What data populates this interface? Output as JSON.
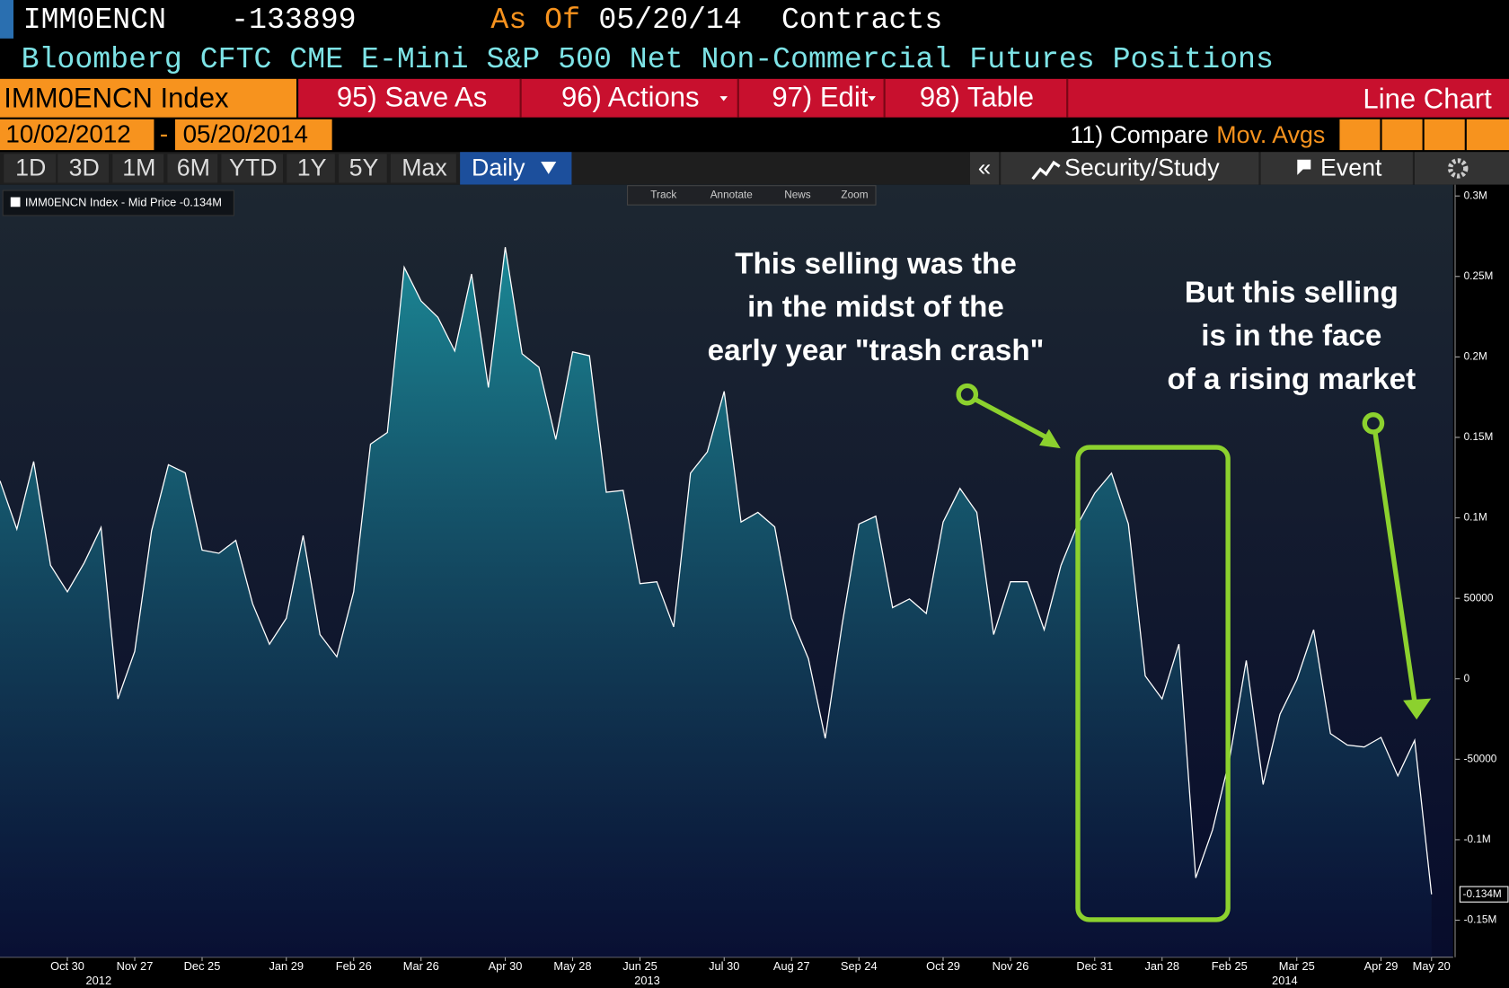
{
  "header": {
    "ticker": "IMM0ENCN",
    "as_of_label": "As Of",
    "as_of_date": "05/20/14",
    "units": "Contracts",
    "title": "Bloomberg CFTC CME E-Mini S&P 500 Net Non-Commercial Futures Positions"
  },
  "toolbar": {
    "security": "IMM0ENCN Index",
    "buttons": [
      "95) Save As",
      "96) Actions",
      "97) Edit",
      "98) Table"
    ],
    "view": "Line Chart"
  },
  "range": {
    "start": "10/02/2012",
    "separator": "-",
    "end": "05/20/2014",
    "compare": "11) Compare",
    "mov_avgs": "Mov. Avgs"
  },
  "periods": [
    "1D",
    "3D",
    "1M",
    "6M",
    "YTD",
    "1Y",
    "5Y",
    "Max"
  ],
  "frequency": "Daily",
  "side_tools": {
    "collapse": "«",
    "security_study": "Security/Study",
    "event": "Event"
  },
  "chart_tools": [
    "Track",
    "Annotate",
    "News",
    "Zoom"
  ],
  "chart_data": {
    "type": "area",
    "x": [
      "2012-10-02",
      "2012-10-09",
      "2012-10-16",
      "2012-10-23",
      "2012-10-30",
      "2012-11-06",
      "2012-11-13",
      "2012-11-20",
      "2012-11-27",
      "2012-12-04",
      "2012-12-11",
      "2012-12-18",
      "2012-12-25",
      "2013-01-01",
      "2013-01-08",
      "2013-01-15",
      "2013-01-22",
      "2013-01-29",
      "2013-02-05",
      "2013-02-12",
      "2013-02-19",
      "2013-02-26",
      "2013-03-05",
      "2013-03-12",
      "2013-03-19",
      "2013-03-26",
      "2013-04-02",
      "2013-04-09",
      "2013-04-16",
      "2013-04-23",
      "2013-04-30",
      "2013-05-07",
      "2013-05-14",
      "2013-05-21",
      "2013-05-28",
      "2013-06-04",
      "2013-06-11",
      "2013-06-18",
      "2013-06-25",
      "2013-07-02",
      "2013-07-09",
      "2013-07-16",
      "2013-07-23",
      "2013-07-30",
      "2013-08-06",
      "2013-08-13",
      "2013-08-20",
      "2013-08-27",
      "2013-09-03",
      "2013-09-10",
      "2013-09-17",
      "2013-09-24",
      "2013-10-01",
      "2013-10-08",
      "2013-10-15",
      "2013-10-22",
      "2013-10-29",
      "2013-11-05",
      "2013-11-12",
      "2013-11-19",
      "2013-11-26",
      "2013-12-03",
      "2013-12-10",
      "2013-12-17",
      "2013-12-24",
      "2013-12-31",
      "2014-01-07",
      "2014-01-14",
      "2014-01-21",
      "2014-01-28",
      "2014-02-04",
      "2014-02-11",
      "2014-02-18",
      "2014-02-25",
      "2014-03-04",
      "2014-03-11",
      "2014-03-18",
      "2014-03-25",
      "2014-04-01",
      "2014-04-08",
      "2014-04-15",
      "2014-04-22",
      "2014-04-29",
      "2014-05-06",
      "2014-05-13",
      "2014-05-20"
    ],
    "series": [
      {
        "name": "IMM0ENCN Index - Mid Price -0.134M",
        "color": "#ffffff",
        "fill": "#1b8896",
        "values": [
          123000,
          93000,
          135000,
          70500,
          54000,
          72000,
          94000,
          -12500,
          17000,
          92000,
          133000,
          128000,
          80000,
          78000,
          86000,
          46600,
          21500,
          37600,
          89000,
          27500,
          13700,
          54000,
          145800,
          153000,
          255700,
          234800,
          224600,
          203700,
          251500,
          181000,
          268200,
          202000,
          193600,
          148700,
          203100,
          200700,
          115900,
          117100,
          59100,
          60300,
          32300,
          127800,
          141000,
          178600,
          97400,
          103400,
          94400,
          37600,
          12500,
          -37000,
          33500,
          96200,
          101000,
          44200,
          49600,
          40600,
          97400,
          118300,
          103400,
          27500,
          60300,
          60300,
          30500,
          70500,
          96200,
          115300,
          127800,
          96200,
          1800,
          -12500,
          21500,
          -123700,
          -93800,
          -50200,
          11400,
          -65700,
          -22100,
          -600,
          30500,
          -34100,
          -41200,
          -42400,
          -36400,
          -60300,
          -38200,
          -133899
        ],
        "value_labels": [
          null,
          null,
          null,
          null,
          null,
          null,
          null,
          null,
          null,
          null,
          null,
          null,
          null,
          null,
          null,
          null,
          null,
          null,
          null,
          null,
          null,
          null,
          null,
          null,
          null,
          null,
          null,
          null,
          null,
          null,
          null,
          null,
          null,
          null,
          null,
          null,
          null,
          null,
          null,
          null,
          null,
          null,
          null,
          null,
          null,
          null,
          null,
          null,
          null,
          null,
          null,
          null,
          null,
          null,
          null,
          null,
          null,
          null,
          null,
          null,
          null,
          null,
          null,
          null,
          null,
          null,
          null,
          null,
          null,
          null,
          null,
          null,
          null,
          null,
          null,
          null,
          null,
          null,
          null,
          null,
          null,
          null,
          null,
          null,
          null,
          "-0.134M"
        ]
      }
    ],
    "xlim": [
      "2012-10-02",
      "2014-05-29"
    ],
    "xticks": [
      {
        "value": "2012-10-30",
        "label": "Oct 30"
      },
      {
        "value": "2012-11-27",
        "label": "Nov 27"
      },
      {
        "value": "2012-12-25",
        "label": "Dec 25"
      },
      {
        "value": "2013-01-29",
        "label": "Jan 29"
      },
      {
        "value": "2013-02-26",
        "label": "Feb 26"
      },
      {
        "value": "2013-03-26",
        "label": "Mar 26"
      },
      {
        "value": "2013-04-30",
        "label": "Apr 30"
      },
      {
        "value": "2013-05-28",
        "label": "May 28"
      },
      {
        "value": "2013-06-25",
        "label": "Jun 25"
      },
      {
        "value": "2013-07-30",
        "label": "Jul 30"
      },
      {
        "value": "2013-08-27",
        "label": "Aug 27"
      },
      {
        "value": "2013-09-24",
        "label": "Sep 24"
      },
      {
        "value": "2013-10-29",
        "label": "Oct 29"
      },
      {
        "value": "2013-11-26",
        "label": "Nov 26"
      },
      {
        "value": "2013-12-31",
        "label": "Dec 31"
      },
      {
        "value": "2014-01-28",
        "label": "Jan 28"
      },
      {
        "value": "2014-02-25",
        "label": "Feb 25"
      },
      {
        "value": "2014-03-25",
        "label": "Mar 25"
      },
      {
        "value": "2014-04-29",
        "label": "Apr 29"
      },
      {
        "value": "2014-05-20",
        "label": "May 20"
      }
    ],
    "year_ticks": [
      {
        "value": "2012-11-12",
        "label": "2012"
      },
      {
        "value": "2013-06-28",
        "label": "2013"
      },
      {
        "value": "2014-03-20",
        "label": "2014"
      }
    ],
    "ylim": [
      -173000,
      307000
    ],
    "yticks": [
      {
        "value": -150000,
        "label": "-0.15M"
      },
      {
        "value": -100000,
        "label": "-0.1M"
      },
      -50000,
      0,
      50000,
      {
        "value": 100000,
        "label": "0.1M"
      },
      {
        "value": 150000,
        "label": "0.15M"
      },
      {
        "value": 200000,
        "label": "0.2M"
      },
      {
        "value": 250000,
        "label": "0.25M"
      },
      {
        "value": 300000,
        "label": "0.3M"
      }
    ],
    "legend": "upper left",
    "annotations": [
      {
        "lines": [
          "This selling was the",
          "in the midst of the",
          "early year \"trash crash\""
        ]
      },
      {
        "lines": [
          "But this selling",
          "is in the face",
          "of a rising market"
        ]
      }
    ]
  }
}
